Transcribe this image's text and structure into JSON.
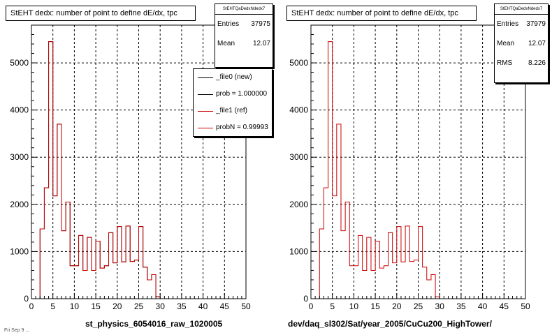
{
  "chart_data": [
    {
      "type": "histogram",
      "title": "StEHT dedx: number of point to define dE/dx, tpc",
      "xlabel": "st_physics_6054016_raw_1020005",
      "ylabel": "",
      "xlim": [
        0,
        50
      ],
      "ylim": [
        0,
        5800
      ],
      "grid": true,
      "x_ticks": [
        0,
        5,
        10,
        15,
        20,
        25,
        30,
        35,
        40,
        45,
        50
      ],
      "y_ticks": [
        0,
        1000,
        2000,
        3000,
        4000,
        5000
      ],
      "bins": [
        0,
        1,
        2,
        3,
        4,
        5,
        6,
        7,
        8,
        9,
        10,
        11,
        12,
        13,
        14,
        15,
        16,
        17,
        18,
        19,
        20,
        21,
        22,
        23,
        24,
        25,
        26,
        27,
        28,
        29,
        30,
        31,
        32,
        33,
        34,
        35,
        36,
        37,
        38,
        39,
        40,
        41,
        42,
        43,
        44,
        45,
        46,
        47,
        48,
        49
      ],
      "series": [
        {
          "name": "_file0 (new)",
          "color": "#000000",
          "values": [
            0,
            0,
            1480,
            2350,
            5450,
            2180,
            3700,
            1440,
            2050,
            700,
            700,
            1340,
            600,
            1300,
            600,
            1220,
            650,
            700,
            1400,
            760,
            1530,
            780,
            1540,
            790,
            820,
            1530,
            670,
            400,
            510,
            40,
            0,
            0,
            0,
            0,
            0,
            0,
            0,
            0,
            0,
            0,
            0,
            0,
            0,
            0,
            0,
            0,
            0,
            0,
            0,
            0
          ]
        },
        {
          "name": "_file1 (ref)",
          "color": "#cc0000",
          "values": [
            0,
            0,
            1480,
            2350,
            5450,
            2180,
            3700,
            1440,
            2050,
            700,
            700,
            1340,
            600,
            1300,
            600,
            1220,
            650,
            700,
            1400,
            760,
            1530,
            780,
            1540,
            790,
            820,
            1530,
            670,
            400,
            510,
            40,
            0,
            0,
            0,
            0,
            0,
            0,
            0,
            0,
            0,
            0,
            0,
            0,
            0,
            0,
            0,
            0,
            0,
            0,
            0,
            0
          ]
        }
      ],
      "stats": {
        "name": "StEHTQaDedxNdedx7",
        "entries": "37975",
        "mean": "12.07"
      },
      "legend": {
        "placement": "top-right",
        "entries": [
          "_file0 (new)",
          "prob = 1.000000",
          "_file1 (ref)",
          "probN = 0.99993"
        ]
      }
    },
    {
      "type": "histogram",
      "title": "StEHT dedx: number of point to define dE/dx, tpc",
      "xlabel": "dev/daq_sl302/Sat/year_2005/CuCu200_HighTower/",
      "ylabel": "",
      "xlim": [
        0,
        50
      ],
      "ylim": [
        0,
        5800
      ],
      "grid": true,
      "x_ticks": [
        0,
        5,
        10,
        15,
        20,
        25,
        30,
        35,
        40,
        45,
        50
      ],
      "y_ticks": [
        0,
        1000,
        2000,
        3000,
        4000,
        5000
      ],
      "series": [
        {
          "color": "#cc0000",
          "values": [
            0,
            0,
            1480,
            2350,
            5450,
            2180,
            3700,
            1440,
            2050,
            700,
            700,
            1340,
            600,
            1300,
            600,
            1220,
            650,
            700,
            1400,
            760,
            1530,
            780,
            1540,
            790,
            820,
            1530,
            670,
            400,
            510,
            40,
            0,
            0,
            0,
            0,
            0,
            0,
            0,
            0,
            0,
            0,
            0,
            0,
            0,
            0,
            0,
            0,
            0,
            0,
            0,
            0
          ]
        }
      ],
      "stats": {
        "name": "StEHTQaDedxNdedx7",
        "entries": "37979",
        "mean": "12.07",
        "rms": "8.226"
      }
    }
  ],
  "labels": {
    "entries": "Entries",
    "mean": "Mean",
    "rms": "RMS"
  },
  "footnote": "Fri Sep  9 ..."
}
